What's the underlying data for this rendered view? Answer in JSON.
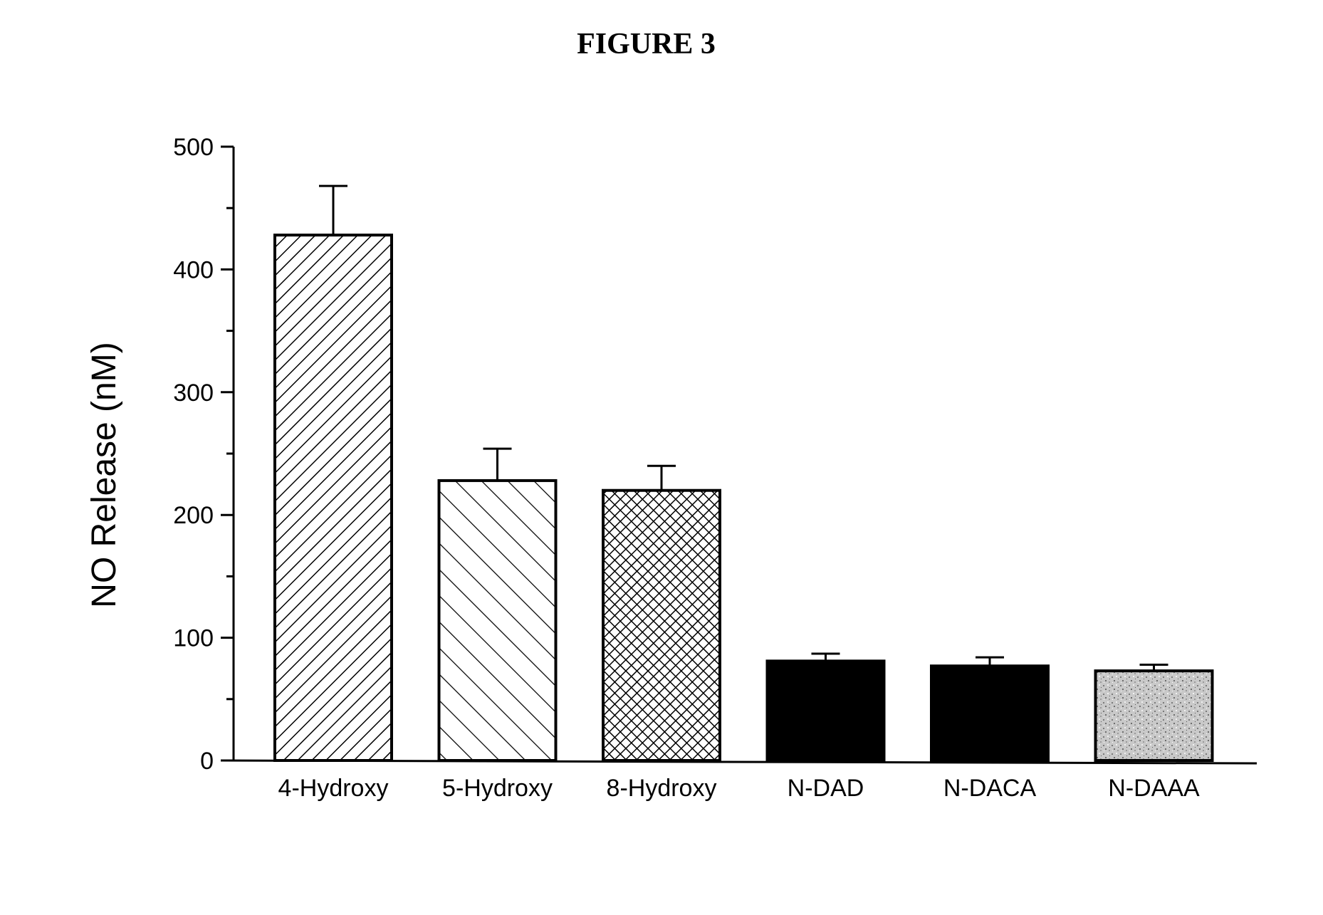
{
  "figure_title": "FIGURE 3",
  "chart_data": {
    "type": "bar",
    "title": "",
    "ylabel": "NO Release (nM)",
    "xlabel": "",
    "ylim": [
      0,
      500
    ],
    "yticks": [
      0,
      100,
      200,
      300,
      400,
      500
    ],
    "categories": [
      "4-Hydroxy",
      "5-Hydroxy",
      "8-Hydroxy",
      "N-DAD",
      "N-DACA",
      "N-DAAA"
    ],
    "values": [
      428,
      228,
      220,
      81,
      77,
      73
    ],
    "errors": [
      40,
      26,
      20,
      6,
      7,
      5
    ],
    "fill_styles": [
      "hatch-forward",
      "hatch-backward",
      "crosshatch",
      "solid-black",
      "solid-black",
      "speckled-gray"
    ],
    "grid": false,
    "legend": "none"
  }
}
